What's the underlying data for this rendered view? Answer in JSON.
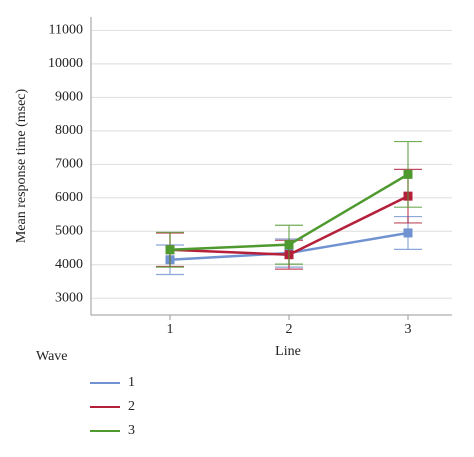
{
  "chart_data": {
    "type": "line",
    "categories": [
      "1",
      "2",
      "3"
    ],
    "x_label": "Line",
    "y_label": "Mean response time (msec)",
    "legend_title": "Wave",
    "series": [
      {
        "name": "1",
        "color": "#7092d0",
        "values": [
          4150,
          4350,
          4950
        ],
        "errors": [
          440,
          420,
          490
        ]
      },
      {
        "name": "2",
        "color": "#b51f3a",
        "values": [
          4450,
          4300,
          6050
        ],
        "errors": [
          500,
          430,
          800
        ]
      },
      {
        "name": "3",
        "color": "#4f9a2f",
        "values": [
          4450,
          4600,
          6700
        ],
        "errors": [
          520,
          580,
          980
        ]
      }
    ],
    "ylim": [
      2500,
      11400
    ],
    "yticks": [
      3000,
      4000,
      5000,
      6000,
      7000,
      8000,
      9000,
      10000,
      11000
    ],
    "grid": true
  }
}
